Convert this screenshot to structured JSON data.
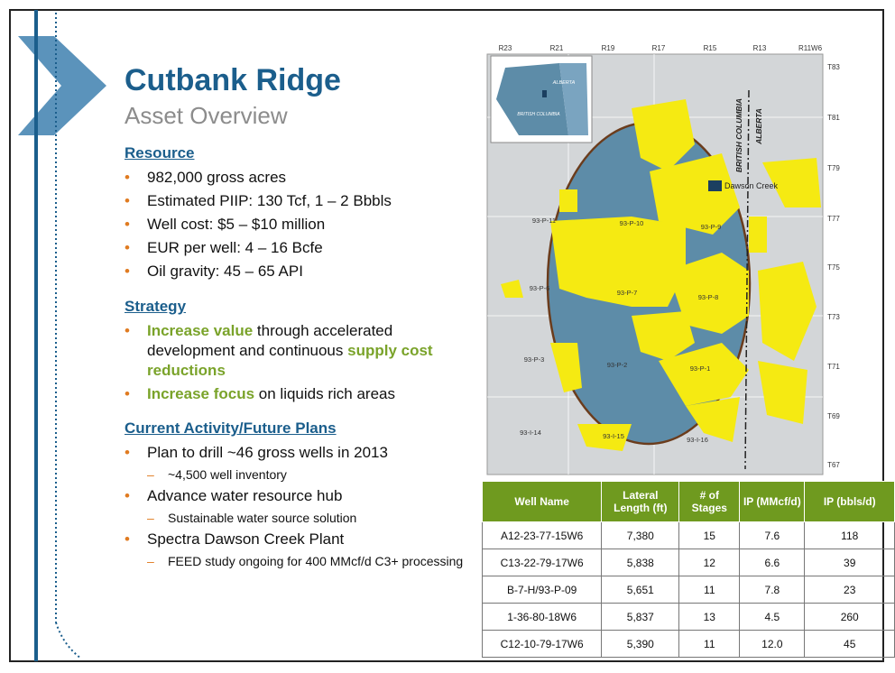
{
  "title": "Cutbank Ridge",
  "subtitle": "Asset Overview",
  "sections": [
    {
      "heading": "Resource",
      "bullets": [
        {
          "parts": [
            {
              "text": "982,000 gross acres"
            }
          ]
        },
        {
          "parts": [
            {
              "text": "Estimated PIIP: 130 Tcf, 1 – 2 Bbbls"
            }
          ]
        },
        {
          "parts": [
            {
              "text": "Well cost: $5 – $10 million"
            }
          ]
        },
        {
          "parts": [
            {
              "text": "EUR per well: 4 – 16 Bcfe"
            }
          ]
        },
        {
          "parts": [
            {
              "text": "Oil gravity: 45 – 65 API"
            }
          ]
        }
      ]
    },
    {
      "heading": "Strategy",
      "bullets": [
        {
          "parts": [
            {
              "text": "Increase value",
              "color": "#7aa32a"
            },
            {
              "text": " through accelerated development and continuous "
            },
            {
              "text": "supply cost reductions",
              "color": "#7aa32a"
            }
          ]
        },
        {
          "parts": [
            {
              "text": "Increase focus",
              "color": "#7aa32a"
            },
            {
              "text": " on liquids rich areas"
            }
          ]
        }
      ]
    },
    {
      "heading": "Current Activity/Future Plans",
      "bullets": [
        {
          "parts": [
            {
              "text": "Plan to drill ~46 gross wells in 2013"
            }
          ],
          "sub": [
            "~4,500 well inventory"
          ]
        },
        {
          "parts": [
            {
              "text": "Advance water resource hub"
            }
          ],
          "sub": [
            "Sustainable  water source solution"
          ]
        },
        {
          "parts": [
            {
              "text": "Spectra Dawson Creek Plant"
            }
          ],
          "sub": [
            "FEED study ongoing for  400 MMcf/d C3+ processing"
          ]
        }
      ]
    }
  ],
  "map": {
    "ranges": [
      "R23",
      "R21",
      "R19",
      "R17",
      "R15",
      "R13",
      "R11W6"
    ],
    "townships": [
      "T83",
      "T81",
      "T79",
      "T77",
      "T75",
      "T73",
      "T71",
      "T69",
      "T67"
    ],
    "blocks": [
      "93-P-11",
      "93-P-10",
      "93-P-9",
      "93-P-6",
      "93-P-7",
      "93-P-8",
      "93-P-3",
      "93-P-2",
      "93-P-1",
      "93-I-14",
      "93-I-15",
      "93-I-16"
    ],
    "city": "Dawson Creek",
    "border_west": "BRITISH COLUMBIA",
    "border_east": "ALBERTA",
    "inset": {
      "east": "ALBERTA",
      "west": "BRITISH COLUMBIA"
    }
  },
  "table": {
    "header": [
      "Well Name",
      "Lateral Length (ft)",
      "# of Stages",
      "IP (MMcf/d)",
      "IP (bbls/d)"
    ],
    "rows": [
      [
        "A12-23-77-15W6",
        "7,380",
        "15",
        "7.6",
        "118"
      ],
      [
        "C13-22-79-17W6",
        "5,838",
        "12",
        "6.6",
        "39"
      ],
      [
        "B-7-H/93-P-09",
        "5,651",
        "11",
        "7.8",
        "23"
      ],
      [
        "1-36-80-18W6",
        "5,837",
        "13",
        "4.5",
        "260"
      ],
      [
        "C12-10-79-17W6",
        "5,390",
        "11",
        "12.0",
        "45"
      ]
    ]
  }
}
